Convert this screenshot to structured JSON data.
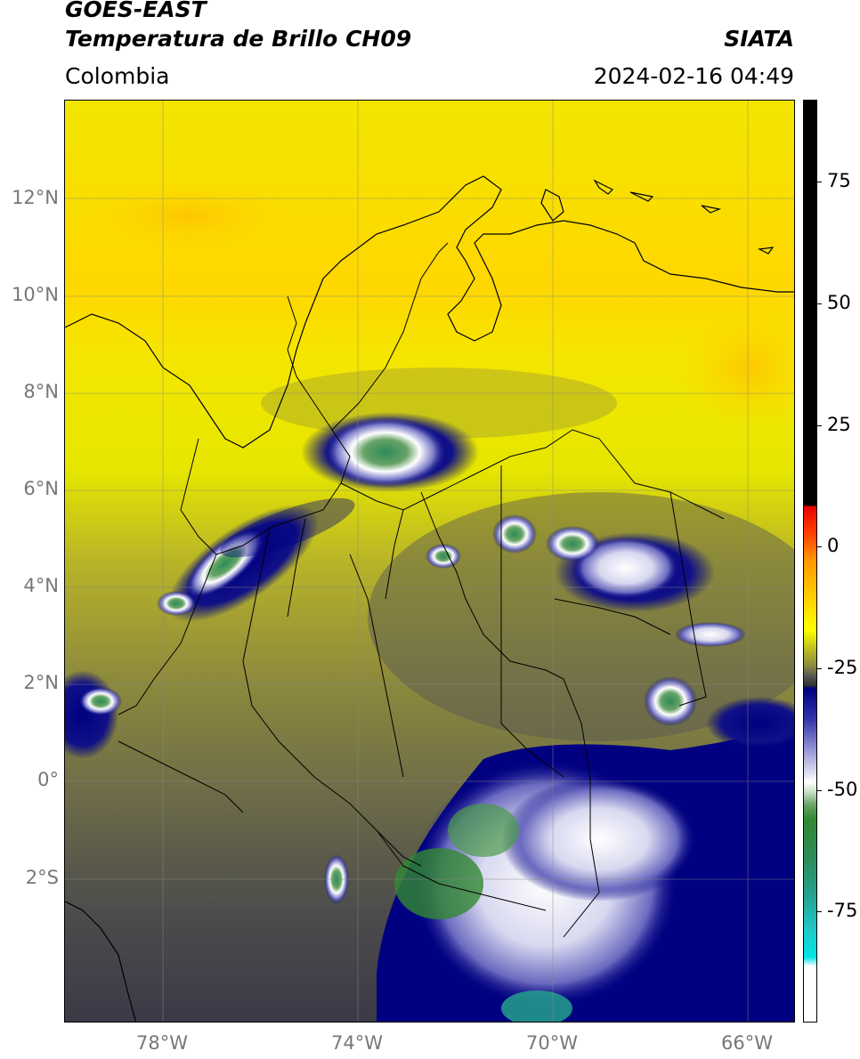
{
  "header": {
    "title_line1": "GOES-EAST",
    "title_line2": "Temperatura de Brillo CH09",
    "region": "Colombia",
    "source": "SIATA",
    "datetime": "2024-02-16 04:49"
  },
  "map": {
    "lat_labels": [
      "12°N",
      "10°N",
      "8°N",
      "6°N",
      "4°N",
      "2°N",
      "0°",
      "2°S"
    ],
    "lon_labels": [
      "78°W",
      "74°W",
      "70°W",
      "66°W"
    ]
  },
  "colorbar": {
    "tick_labels": [
      "75",
      "50",
      "25",
      "0",
      "-25",
      "-50",
      "-75"
    ],
    "colors": {
      "warm_max": "#000000",
      "red": "#e60000",
      "orange": "#ff9900",
      "yellow": "#ffff00",
      "olive": "#888840",
      "gray": "#555555",
      "navy": "#000080",
      "white": "#ffffff",
      "green": "#338833",
      "teal": "#25a08c",
      "cyan": "#00e5e5"
    }
  }
}
